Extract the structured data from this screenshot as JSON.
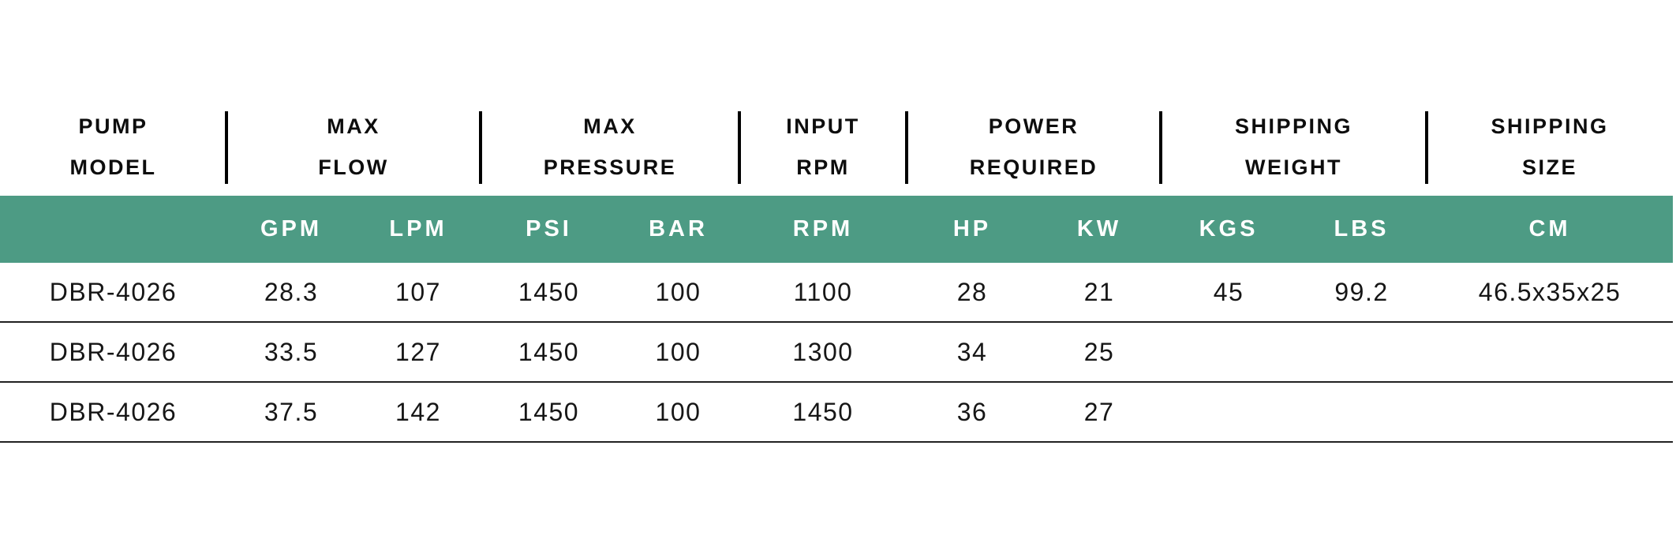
{
  "colors": {
    "band_green": "#4d9b84",
    "row_line": "#212121",
    "header_text": "#0d0d0d",
    "unit_text": "#ffffff",
    "data_text": "#161616"
  },
  "header": {
    "groups": [
      {
        "line1": "PUMP",
        "line2": "MODEL"
      },
      {
        "line1": "MAX",
        "line2": "FLOW"
      },
      {
        "line1": "MAX",
        "line2": "PRESSURE"
      },
      {
        "line1": "INPUT",
        "line2": "RPM"
      },
      {
        "line1": "POWER",
        "line2": "REQUIRED"
      },
      {
        "line1": "SHIPPING",
        "line2": "WEIGHT"
      },
      {
        "line1": "SHIPPING",
        "line2": "SIZE"
      }
    ],
    "units": [
      "",
      "GPM",
      "LPM",
      "PSI",
      "BAR",
      "RPM",
      "HP",
      "KW",
      "KGS",
      "LBS",
      "CM"
    ]
  },
  "rows": [
    [
      "DBR-4026",
      "28.3",
      "107",
      "1450",
      "100",
      "1100",
      "28",
      "21",
      "45",
      "99.2",
      "46.5x35x25"
    ],
    [
      "DBR-4026",
      "33.5",
      "127",
      "1450",
      "100",
      "1300",
      "34",
      "25",
      "",
      "",
      ""
    ],
    [
      "DBR-4026",
      "37.5",
      "142",
      "1450",
      "100",
      "1450",
      "36",
      "27",
      "",
      "",
      ""
    ]
  ]
}
